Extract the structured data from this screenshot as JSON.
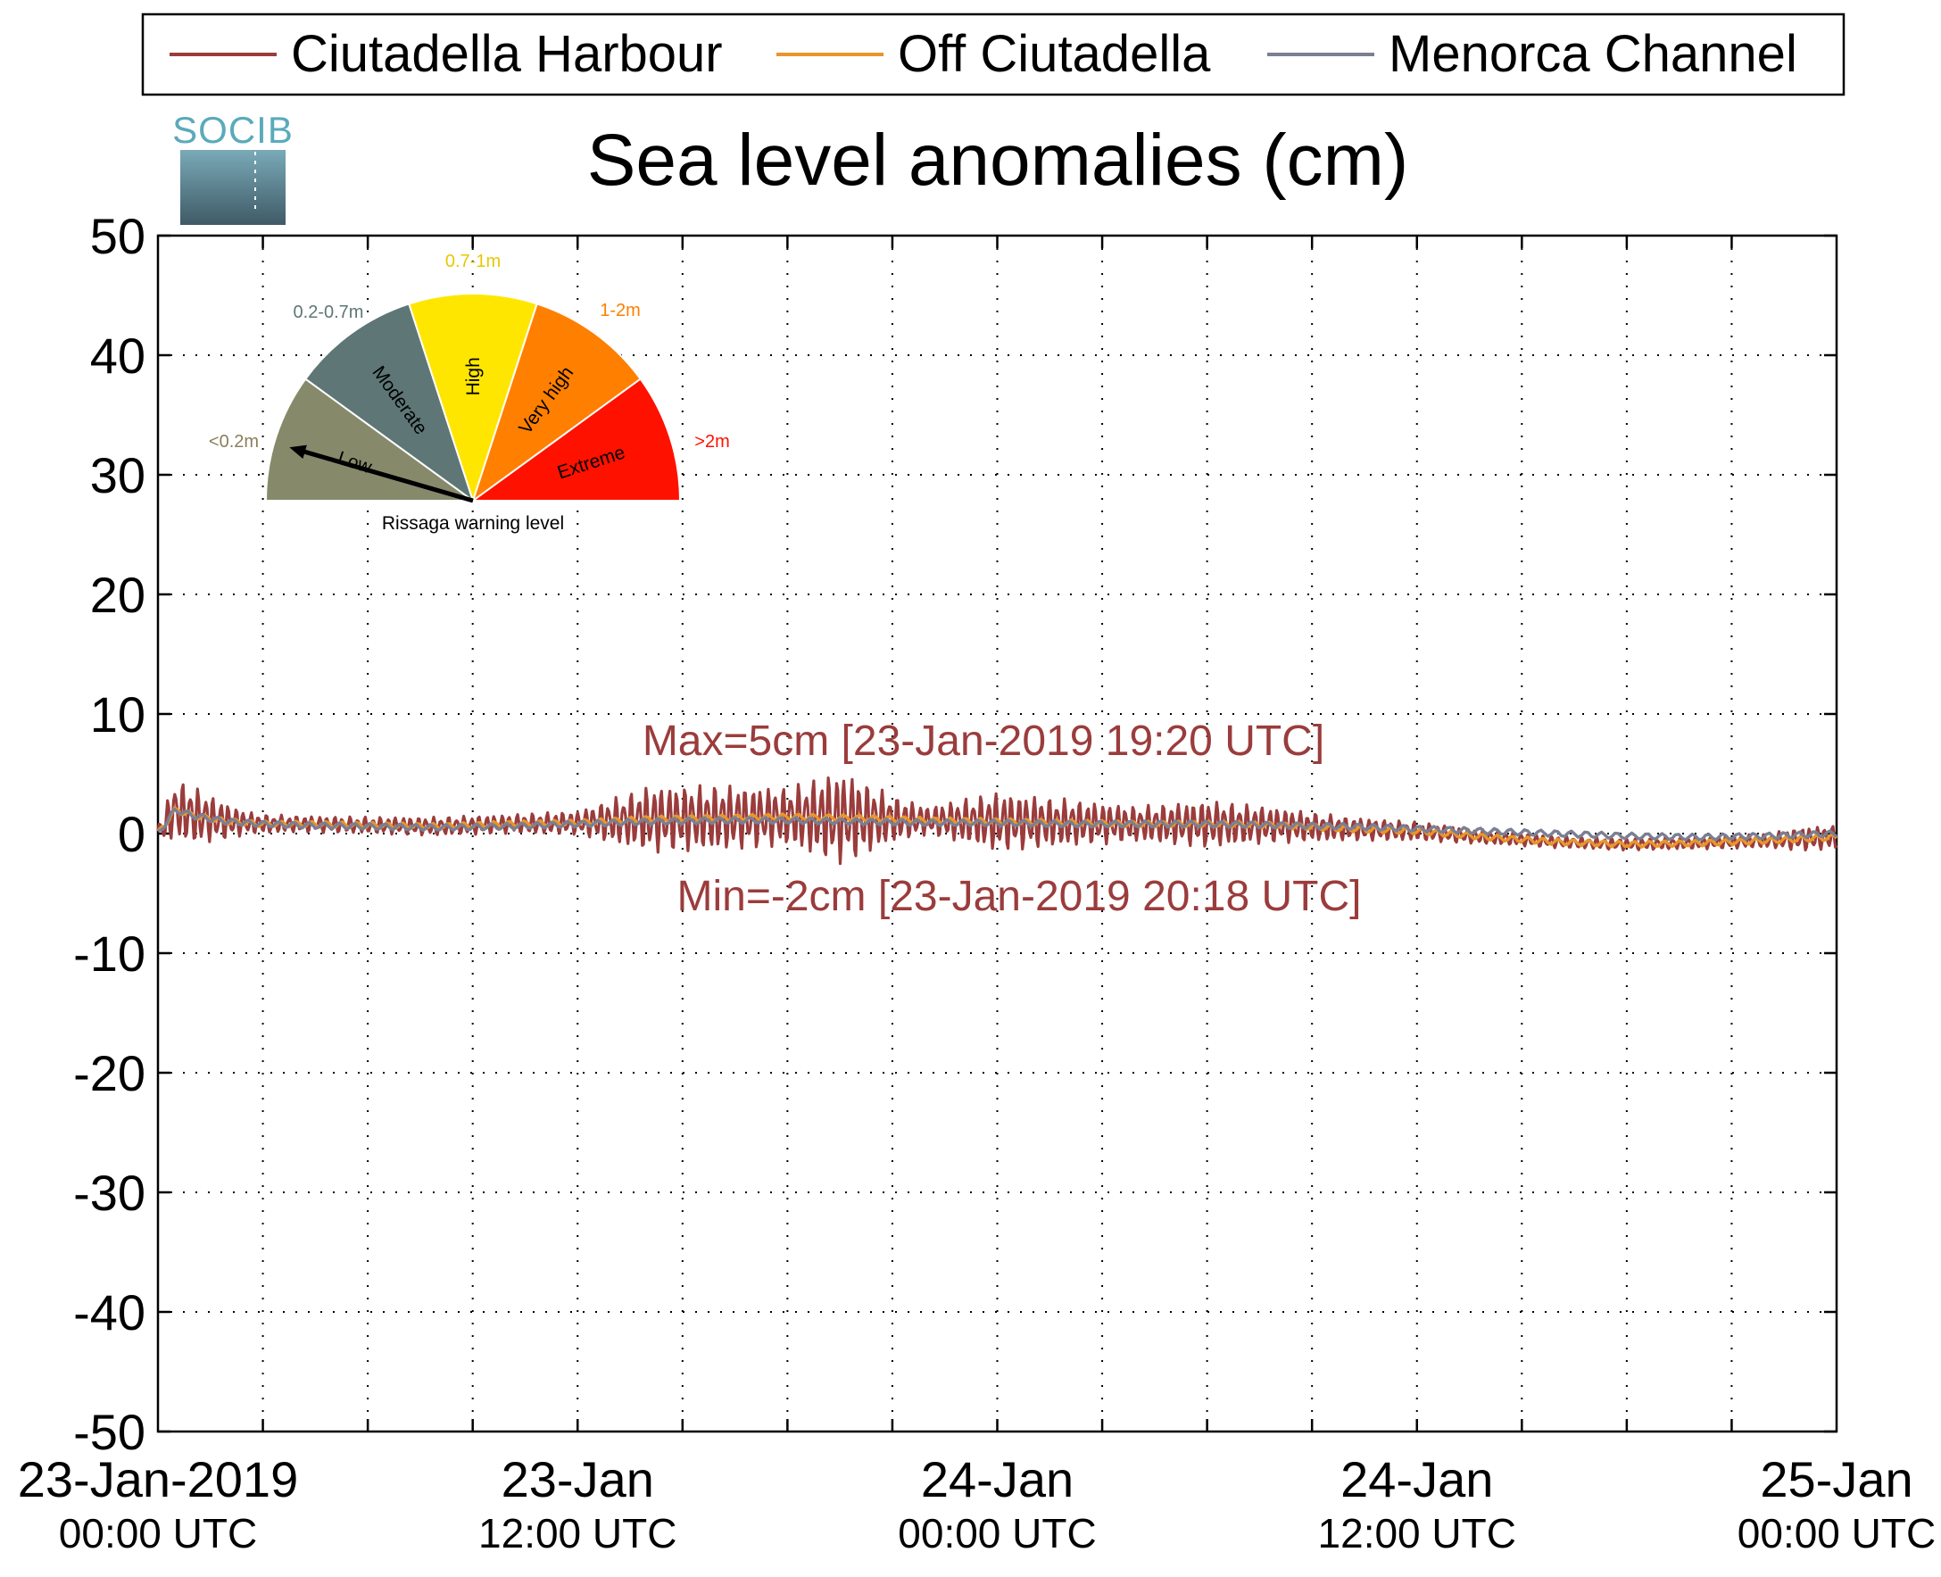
{
  "chart_data": {
    "type": "line",
    "title": "Sea level anomalies (cm)",
    "xlabel": "",
    "ylabel": "",
    "ylim": [
      -50,
      50
    ],
    "yticks": [
      50,
      40,
      30,
      20,
      10,
      0,
      -10,
      -20,
      -30,
      -40,
      -50
    ],
    "xlim": [
      "23-Jan-2019 00:00 UTC",
      "25-Jan-2019 00:00 UTC"
    ],
    "xticks": [
      {
        "line1": "23-Jan-2019",
        "line2": "00:00 UTC"
      },
      {
        "line1": "23-Jan",
        "line2": "12:00 UTC"
      },
      {
        "line1": "24-Jan",
        "line2": "00:00 UTC"
      },
      {
        "line1": "24-Jan",
        "line2": "12:00 UTC"
      },
      {
        "line1": "25-Jan",
        "line2": "00:00 UTC"
      }
    ],
    "grid": true,
    "legend_position": "top",
    "series": [
      {
        "name": "Ciutadella Harbour",
        "color": "#9b3c3c",
        "x_hours": [
          0,
          0.5,
          1,
          1.5,
          2,
          2.5,
          3,
          4,
          5,
          6,
          8,
          10,
          12,
          14,
          16,
          18,
          19,
          19.33,
          20,
          20.3,
          21,
          22,
          24,
          26,
          28,
          30,
          32,
          34,
          36,
          38,
          40,
          42,
          44,
          46,
          47,
          47.5,
          48
        ],
        "amplitude": [
          0.8,
          2.5,
          2.5,
          2.0,
          1.5,
          1.0,
          0.8,
          0.7,
          0.7,
          0.7,
          0.8,
          0.8,
          1.0,
          2.8,
          2.8,
          2.5,
          3.5,
          4.0,
          3.5,
          3.0,
          2.0,
          1.2,
          2.5,
          2.0,
          1.5,
          2.0,
          1.5,
          1.0,
          0.8,
          0.6,
          0.5,
          0.5,
          0.5,
          0.6,
          1.0,
          1.0,
          1.0
        ]
      },
      {
        "name": "Off Ciutadella",
        "color": "#e8962a",
        "x_hours": [
          0,
          0.5,
          1,
          2,
          3,
          4,
          6,
          8,
          10,
          12,
          14,
          16,
          18,
          20,
          22,
          24,
          26,
          28,
          30,
          32,
          34,
          36,
          38,
          40,
          42,
          44,
          46,
          48
        ],
        "values": [
          0,
          2.0,
          1.5,
          1.0,
          0.8,
          0.8,
          0.7,
          0.6,
          0.8,
          0.9,
          1.2,
          1.3,
          1.4,
          1.3,
          1.1,
          1.0,
          0.9,
          0.8,
          0.8,
          0.7,
          0.4,
          0.2,
          -0.3,
          -0.7,
          -0.9,
          -0.8,
          -0.6,
          -0.3
        ]
      },
      {
        "name": "Menorca Channel",
        "color": "#7a7f93",
        "x_hours": [
          0,
          0.5,
          1,
          2,
          3,
          4,
          6,
          8,
          10,
          12,
          14,
          16,
          18,
          20,
          22,
          24,
          26,
          28,
          30,
          32,
          34,
          36,
          38,
          40,
          42,
          44,
          46,
          48
        ],
        "values": [
          0,
          2.0,
          1.5,
          1.0,
          0.8,
          0.7,
          0.6,
          0.5,
          0.6,
          0.8,
          1.0,
          1.1,
          1.1,
          1.0,
          0.9,
          0.9,
          0.8,
          0.8,
          0.8,
          0.7,
          0.6,
          0.4,
          0.2,
          0.0,
          -0.2,
          -0.3,
          -0.2,
          0.0
        ]
      }
    ],
    "annotations": [
      {
        "text": "Max=5cm [23-Jan-2019 19:20 UTC]",
        "color": "#9b3c3c"
      },
      {
        "text": "Min=-2cm [23-Jan-2019 20:18 UTC]",
        "color": "#9b3c3c"
      }
    ]
  },
  "logo": {
    "text": "SOCIB"
  },
  "gauge": {
    "caption": "Rissaga warning level",
    "current_level": "Low",
    "segments": [
      {
        "name": "Low",
        "range": "<0.2m",
        "color": "#868a6a",
        "label_color": "#8a7f5a"
      },
      {
        "name": "Moderate",
        "range": "0.2-0.7m",
        "color": "#5e7676",
        "label_color": "#5e7676"
      },
      {
        "name": "High",
        "range": "0.7-1m",
        "color": "#ffe600",
        "label_color": "#e8c800"
      },
      {
        "name": "Very high",
        "range": "1-2m",
        "color": "#ff7f00",
        "label_color": "#ff7f00"
      },
      {
        "name": "Extreme",
        "range": ">2m",
        "color": "#ff1100",
        "label_color": "#ff1100"
      }
    ]
  }
}
